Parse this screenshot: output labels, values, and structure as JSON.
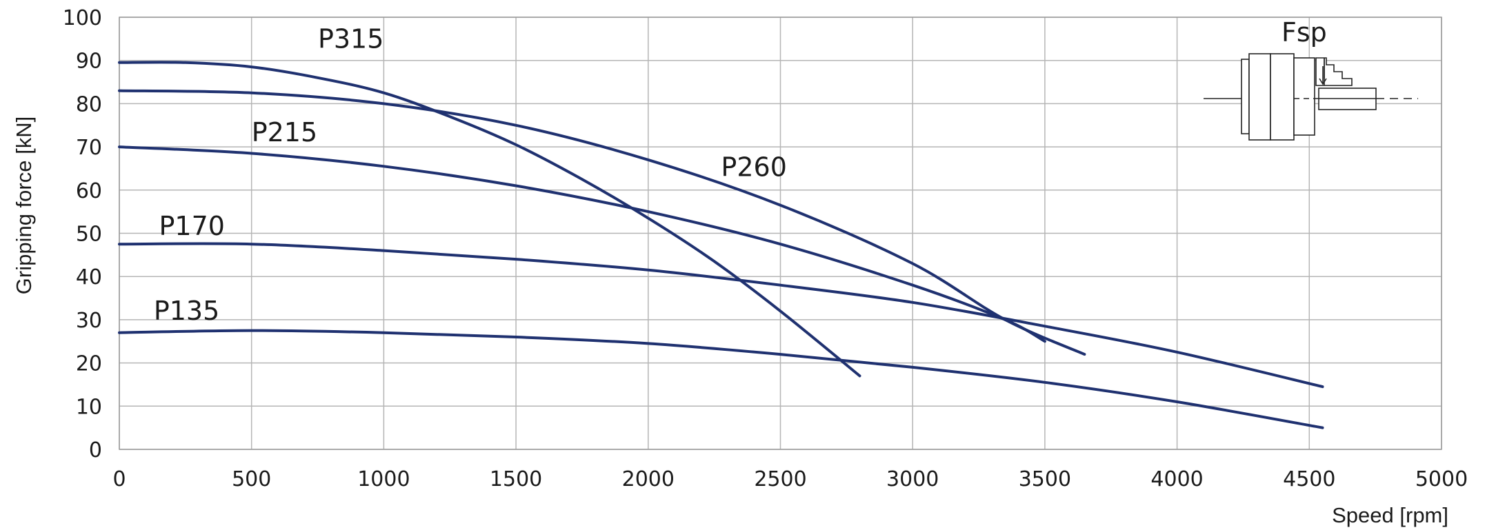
{
  "chart_data": {
    "type": "line",
    "xlabel": "Speed [rpm]",
    "ylabel": "Gripping force [kN]",
    "xlim": [
      0,
      5000
    ],
    "ylim": [
      0,
      100
    ],
    "x_ticks": [
      0,
      500,
      1000,
      1500,
      2000,
      2500,
      3000,
      3500,
      4000,
      4500,
      5000
    ],
    "y_ticks": [
      0,
      10,
      20,
      30,
      40,
      50,
      60,
      70,
      80,
      90,
      100
    ],
    "grid": true,
    "line_color": "#1f3170",
    "series": [
      {
        "name": "P315",
        "x": [
          0,
          250,
          500,
          750,
          1000,
          1250,
          1500,
          1750,
          2000,
          2250,
          2500,
          2800
        ],
        "y": [
          89.5,
          89.5,
          88.5,
          86,
          82.5,
          77,
          70.5,
          62.5,
          53.5,
          43.5,
          32,
          17
        ]
      },
      {
        "name": "P260",
        "x": [
          0,
          500,
          1000,
          1500,
          2000,
          2500,
          3000,
          3350,
          3650
        ],
        "y": [
          83,
          82.5,
          80,
          75,
          67,
          56.5,
          43,
          30,
          22
        ]
      },
      {
        "name": "P215",
        "x": [
          0,
          500,
          1000,
          1500,
          2000,
          2500,
          3000,
          3350,
          3500
        ],
        "y": [
          70,
          68.5,
          65.5,
          61,
          55,
          47.5,
          38,
          30,
          25
        ]
      },
      {
        "name": "P170",
        "x": [
          0,
          500,
          1000,
          1500,
          2000,
          2500,
          3000,
          3500,
          4000,
          4550
        ],
        "y": [
          47.5,
          47.5,
          46,
          44,
          41.5,
          38,
          34,
          28.5,
          22.5,
          14.5
        ]
      },
      {
        "name": "P135",
        "x": [
          0,
          500,
          1000,
          1500,
          2000,
          2500,
          3000,
          3500,
          4000,
          4550
        ],
        "y": [
          27,
          27.5,
          27,
          26,
          24.5,
          22,
          19,
          15.5,
          11,
          5
        ]
      }
    ],
    "inset_label": "Fsp"
  }
}
